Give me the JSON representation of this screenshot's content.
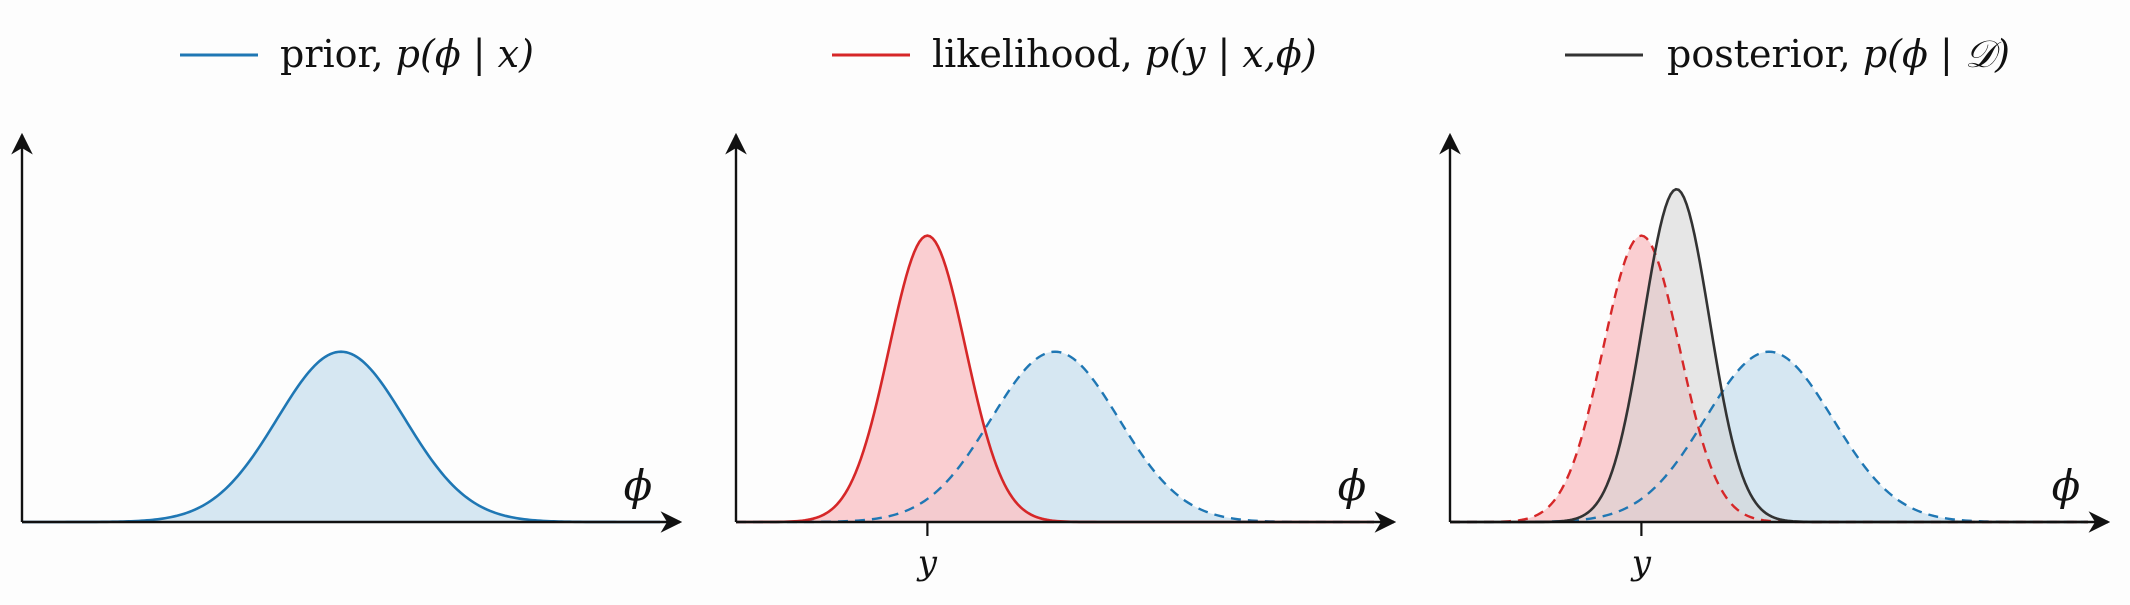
{
  "legend": [
    {
      "key": "prior",
      "prefix": "prior, ",
      "math": "p(ϕ | x)",
      "color": "#1f77b4"
    },
    {
      "key": "likelihood",
      "prefix": "likelihood, ",
      "math": "p(y | x,ϕ)",
      "color": "#d62728"
    },
    {
      "key": "posterior",
      "prefix": "posterior, ",
      "math": "p(ϕ | 𝒟)",
      "color": "#333333"
    }
  ],
  "colors": {
    "prior": "#1f77b4",
    "prior_fill": "#cfe3f0",
    "likelihood": "#d62728",
    "likelihood_fill": "#f9c6c9",
    "posterior": "#333333",
    "posterior_fill": "#d3d3d3"
  },
  "chart_data": [
    {
      "type": "area",
      "x_axis_label": "ϕ",
      "xlim": [
        0,
        10
      ],
      "ylim": [
        0,
        1
      ],
      "grid": false,
      "series": [
        {
          "name": "prior",
          "mean": 5,
          "sd": 1.0,
          "peak": 0.44,
          "style": "solid"
        }
      ]
    },
    {
      "type": "area",
      "x_axis_label": "ϕ",
      "xlim": [
        0,
        10
      ],
      "ylim": [
        0,
        1
      ],
      "xticks": [
        {
          "value": 3,
          "label": "y"
        }
      ],
      "grid": false,
      "series": [
        {
          "name": "prior",
          "mean": 5,
          "sd": 1.0,
          "peak": 0.44,
          "style": "dashed"
        },
        {
          "name": "likelihood",
          "mean": 3,
          "sd": 0.6,
          "peak": 0.74,
          "style": "solid"
        }
      ]
    },
    {
      "type": "area",
      "x_axis_label": "ϕ",
      "xlim": [
        0,
        10
      ],
      "ylim": [
        0,
        1
      ],
      "xticks": [
        {
          "value": 3,
          "label": "y"
        }
      ],
      "grid": false,
      "series": [
        {
          "name": "prior",
          "mean": 5,
          "sd": 1.0,
          "peak": 0.44,
          "style": "dashed"
        },
        {
          "name": "likelihood",
          "mean": 3,
          "sd": 0.6,
          "peak": 0.74,
          "style": "dashed"
        },
        {
          "name": "posterior",
          "mean": 3.55,
          "sd": 0.52,
          "peak": 0.86,
          "style": "solid"
        }
      ]
    }
  ]
}
